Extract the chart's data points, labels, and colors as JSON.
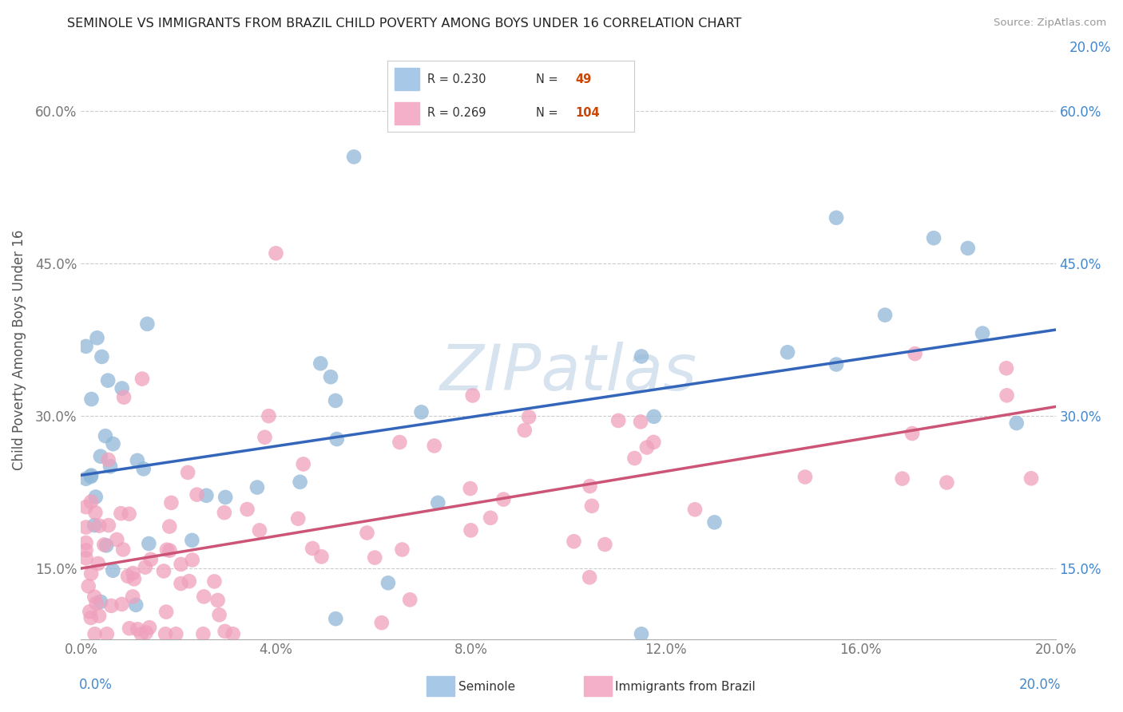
{
  "title": "SEMINOLE VS IMMIGRANTS FROM BRAZIL CHILD POVERTY AMONG BOYS UNDER 16 CORRELATION CHART",
  "source": "Source: ZipAtlas.com",
  "ylabel": "Child Poverty Among Boys Under 16",
  "xlim": [
    0.0,
    0.2
  ],
  "ylim": [
    0.08,
    0.65
  ],
  "x_ticks": [
    0.0,
    0.04,
    0.08,
    0.12,
    0.16,
    0.2
  ],
  "x_tick_labels": [
    "0.0%",
    "4.0%",
    "8.0%",
    "12.0%",
    "16.0%",
    "20.0%"
  ],
  "y_ticks": [
    0.15,
    0.3,
    0.45,
    0.6
  ],
  "y_tick_labels": [
    "15.0%",
    "30.0%",
    "45.0%",
    "60.0%"
  ],
  "seminole_color": "#90b8d8",
  "brazil_color": "#f0a0bc",
  "seminole_line_color": "#3366bb",
  "brazil_line_color": "#cc5577",
  "grid_color": "#cccccc",
  "background_color": "#ffffff",
  "seminole_N": 49,
  "brazil_N": 104,
  "seminole_R": "0.230",
  "brazil_R": "0.269",
  "watermark": "ZIPatlas",
  "legend_R_color": "#333333",
  "legend_N_label_color": "#333333",
  "legend_N_value_color": "#cc4400",
  "right_tick_color": "#4488cc",
  "bottom_label_color": "#333333"
}
